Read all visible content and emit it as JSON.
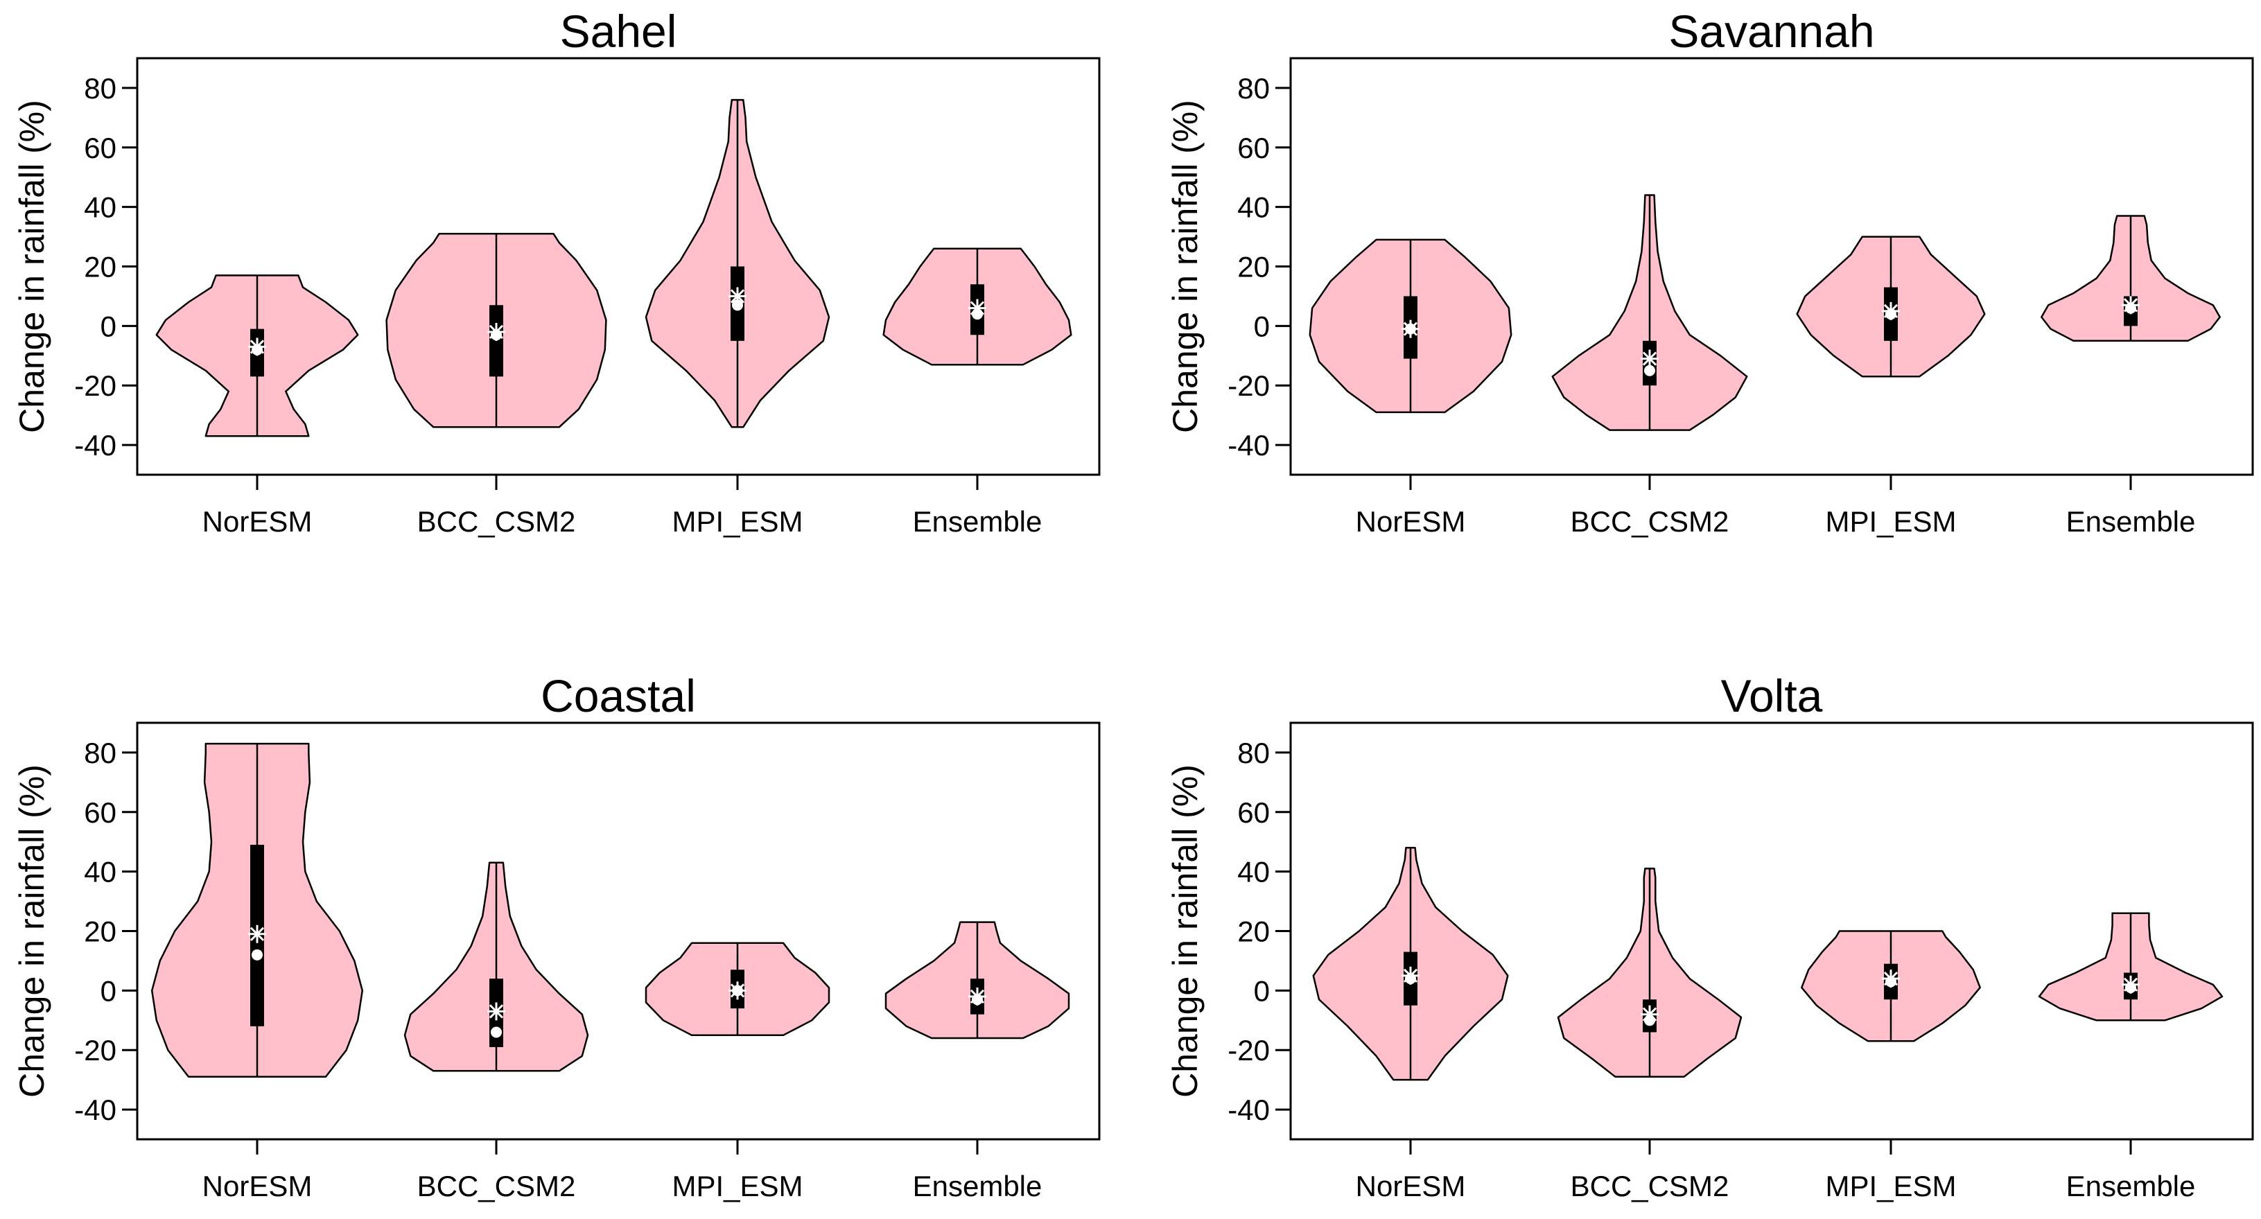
{
  "chart_data": [
    {
      "type": "violin",
      "title": "Sahel",
      "ylabel": "Change in rainfall (%)",
      "xlabel": "",
      "ylim": [
        -50,
        90
      ],
      "yticks": [
        -40,
        -20,
        0,
        20,
        40,
        60,
        80
      ],
      "categories": [
        "NorESM",
        "BCC_CSM2",
        "MPI_ESM",
        "Ensemble"
      ],
      "violins": [
        {
          "min": -37,
          "max": 17,
          "q1": -17,
          "q3": -1,
          "median": -8,
          "mean": -7,
          "density": [
            [
              -37,
              0.45
            ],
            [
              -33,
              0.42
            ],
            [
              -28,
              0.32
            ],
            [
              -22,
              0.25
            ],
            [
              -15,
              0.45
            ],
            [
              -8,
              0.75
            ],
            [
              -3,
              0.88
            ],
            [
              2,
              0.8
            ],
            [
              8,
              0.6
            ],
            [
              13,
              0.4
            ],
            [
              17,
              0.36
            ]
          ]
        },
        {
          "min": -34,
          "max": 31,
          "q1": -17,
          "q3": 7,
          "median": -3,
          "mean": -2,
          "density": [
            [
              -34,
              0.55
            ],
            [
              -28,
              0.72
            ],
            [
              -18,
              0.88
            ],
            [
              -8,
              0.95
            ],
            [
              2,
              0.96
            ],
            [
              12,
              0.88
            ],
            [
              22,
              0.7
            ],
            [
              28,
              0.55
            ],
            [
              31,
              0.5
            ]
          ]
        },
        {
          "min": -34,
          "max": 76,
          "q1": -5,
          "q3": 20,
          "median": 7,
          "mean": 10,
          "density": [
            [
              -34,
              0.05
            ],
            [
              -25,
              0.2
            ],
            [
              -15,
              0.45
            ],
            [
              -5,
              0.75
            ],
            [
              3,
              0.8
            ],
            [
              12,
              0.72
            ],
            [
              22,
              0.5
            ],
            [
              35,
              0.3
            ],
            [
              50,
              0.16
            ],
            [
              62,
              0.08
            ],
            [
              70,
              0.07
            ],
            [
              76,
              0.05
            ]
          ]
        },
        {
          "min": -13,
          "max": 26,
          "q1": -3,
          "q3": 14,
          "median": 4,
          "mean": 6,
          "density": [
            [
              -13,
              0.4
            ],
            [
              -8,
              0.65
            ],
            [
              -3,
              0.82
            ],
            [
              2,
              0.8
            ],
            [
              8,
              0.72
            ],
            [
              14,
              0.6
            ],
            [
              20,
              0.5
            ],
            [
              24,
              0.42
            ],
            [
              26,
              0.38
            ]
          ]
        }
      ]
    },
    {
      "type": "violin",
      "title": "Savannah",
      "ylabel": "Change in rainfall (%)",
      "xlabel": "",
      "ylim": [
        -50,
        90
      ],
      "yticks": [
        -40,
        -20,
        0,
        20,
        40,
        60,
        80
      ],
      "categories": [
        "NorESM",
        "BCC_CSM2",
        "MPI_ESM",
        "Ensemble"
      ],
      "violins": [
        {
          "min": -29,
          "max": 29,
          "q1": -11,
          "q3": 10,
          "median": -1,
          "mean": -1,
          "density": [
            [
              -29,
              0.3
            ],
            [
              -22,
              0.55
            ],
            [
              -12,
              0.8
            ],
            [
              -3,
              0.88
            ],
            [
              6,
              0.86
            ],
            [
              15,
              0.7
            ],
            [
              23,
              0.48
            ],
            [
              29,
              0.3
            ]
          ]
        },
        {
          "min": -35,
          "max": 44,
          "q1": -20,
          "q3": -5,
          "median": -15,
          "mean": -11,
          "density": [
            [
              -35,
              0.35
            ],
            [
              -30,
              0.55
            ],
            [
              -24,
              0.75
            ],
            [
              -17,
              0.85
            ],
            [
              -10,
              0.62
            ],
            [
              -3,
              0.35
            ],
            [
              5,
              0.22
            ],
            [
              15,
              0.12
            ],
            [
              25,
              0.07
            ],
            [
              35,
              0.05
            ],
            [
              44,
              0.04
            ]
          ]
        },
        {
          "min": -17,
          "max": 30,
          "q1": -5,
          "q3": 13,
          "median": 4,
          "mean": 5,
          "density": [
            [
              -17,
              0.25
            ],
            [
              -10,
              0.5
            ],
            [
              -3,
              0.7
            ],
            [
              4,
              0.82
            ],
            [
              10,
              0.75
            ],
            [
              17,
              0.55
            ],
            [
              24,
              0.35
            ],
            [
              30,
              0.25
            ]
          ]
        },
        {
          "min": -5,
          "max": 37,
          "q1": 0,
          "q3": 10,
          "median": 6,
          "mean": 7,
          "density": [
            [
              -5,
              0.5
            ],
            [
              -1,
              0.7
            ],
            [
              3,
              0.78
            ],
            [
              7,
              0.72
            ],
            [
              11,
              0.5
            ],
            [
              16,
              0.3
            ],
            [
              22,
              0.18
            ],
            [
              28,
              0.15
            ],
            [
              34,
              0.14
            ],
            [
              37,
              0.12
            ]
          ]
        }
      ]
    },
    {
      "type": "violin",
      "title": "Coastal",
      "ylabel": "Change in rainfall (%)",
      "xlabel": "",
      "ylim": [
        -50,
        90
      ],
      "yticks": [
        -40,
        -20,
        0,
        20,
        40,
        60,
        80
      ],
      "categories": [
        "NorESM",
        "BCC_CSM2",
        "MPI_ESM",
        "Ensemble"
      ],
      "violins": [
        {
          "min": -29,
          "max": 83,
          "q1": -12,
          "q3": 49,
          "median": 12,
          "mean": 19,
          "density": [
            [
              -29,
              0.6
            ],
            [
              -20,
              0.78
            ],
            [
              -10,
              0.88
            ],
            [
              0,
              0.92
            ],
            [
              10,
              0.85
            ],
            [
              20,
              0.72
            ],
            [
              30,
              0.52
            ],
            [
              40,
              0.42
            ],
            [
              50,
              0.4
            ],
            [
              60,
              0.42
            ],
            [
              70,
              0.46
            ],
            [
              80,
              0.45
            ],
            [
              83,
              0.45
            ]
          ]
        },
        {
          "min": -27,
          "max": 43,
          "q1": -19,
          "q3": 4,
          "median": -14,
          "mean": -7,
          "density": [
            [
              -27,
              0.55
            ],
            [
              -22,
              0.75
            ],
            [
              -15,
              0.8
            ],
            [
              -8,
              0.75
            ],
            [
              -1,
              0.55
            ],
            [
              7,
              0.35
            ],
            [
              15,
              0.22
            ],
            [
              25,
              0.12
            ],
            [
              35,
              0.08
            ],
            [
              43,
              0.06
            ]
          ]
        },
        {
          "min": -15,
          "max": 16,
          "q1": -6,
          "q3": 7,
          "median": 0,
          "mean": 0,
          "density": [
            [
              -15,
              0.4
            ],
            [
              -10,
              0.65
            ],
            [
              -4,
              0.8
            ],
            [
              1,
              0.8
            ],
            [
              6,
              0.68
            ],
            [
              11,
              0.5
            ],
            [
              16,
              0.4
            ]
          ]
        },
        {
          "min": -16,
          "max": 23,
          "q1": -8,
          "q3": 4,
          "median": -3,
          "mean": -2,
          "density": [
            [
              -16,
              0.4
            ],
            [
              -12,
              0.62
            ],
            [
              -6,
              0.8
            ],
            [
              -1,
              0.8
            ],
            [
              4,
              0.62
            ],
            [
              10,
              0.38
            ],
            [
              16,
              0.2
            ],
            [
              20,
              0.17
            ],
            [
              23,
              0.15
            ]
          ]
        }
      ]
    },
    {
      "type": "violin",
      "title": "Volta",
      "ylabel": "Change in rainfall (%)",
      "xlabel": "",
      "ylim": [
        -50,
        90
      ],
      "yticks": [
        -40,
        -20,
        0,
        20,
        40,
        60,
        80
      ],
      "categories": [
        "NorESM",
        "BCC_CSM2",
        "MPI_ESM",
        "Ensemble"
      ],
      "violins": [
        {
          "min": -30,
          "max": 48,
          "q1": -5,
          "q3": 13,
          "median": 4,
          "mean": 5,
          "density": [
            [
              -30,
              0.15
            ],
            [
              -22,
              0.3
            ],
            [
              -12,
              0.55
            ],
            [
              -3,
              0.8
            ],
            [
              5,
              0.85
            ],
            [
              12,
              0.72
            ],
            [
              20,
              0.45
            ],
            [
              28,
              0.22
            ],
            [
              36,
              0.1
            ],
            [
              44,
              0.05
            ],
            [
              48,
              0.04
            ]
          ]
        },
        {
          "min": -29,
          "max": 41,
          "q1": -14,
          "q3": -3,
          "median": -10,
          "mean": -8,
          "density": [
            [
              -29,
              0.3
            ],
            [
              -23,
              0.5
            ],
            [
              -16,
              0.75
            ],
            [
              -9,
              0.8
            ],
            [
              -3,
              0.6
            ],
            [
              4,
              0.35
            ],
            [
              11,
              0.2
            ],
            [
              20,
              0.08
            ],
            [
              30,
              0.05
            ],
            [
              38,
              0.05
            ],
            [
              41,
              0.04
            ]
          ]
        },
        {
          "min": -17,
          "max": 20,
          "q1": -3,
          "q3": 9,
          "median": 3,
          "mean": 4,
          "density": [
            [
              -17,
              0.2
            ],
            [
              -11,
              0.45
            ],
            [
              -5,
              0.65
            ],
            [
              1,
              0.78
            ],
            [
              7,
              0.72
            ],
            [
              13,
              0.6
            ],
            [
              18,
              0.48
            ],
            [
              20,
              0.45
            ]
          ]
        },
        {
          "min": -10,
          "max": 26,
          "q1": -3,
          "q3": 6,
          "median": 1,
          "mean": 2,
          "density": [
            [
              -10,
              0.3
            ],
            [
              -6,
              0.62
            ],
            [
              -2,
              0.8
            ],
            [
              2,
              0.72
            ],
            [
              6,
              0.48
            ],
            [
              11,
              0.22
            ],
            [
              17,
              0.17
            ],
            [
              22,
              0.16
            ],
            [
              26,
              0.16
            ]
          ]
        }
      ]
    }
  ]
}
